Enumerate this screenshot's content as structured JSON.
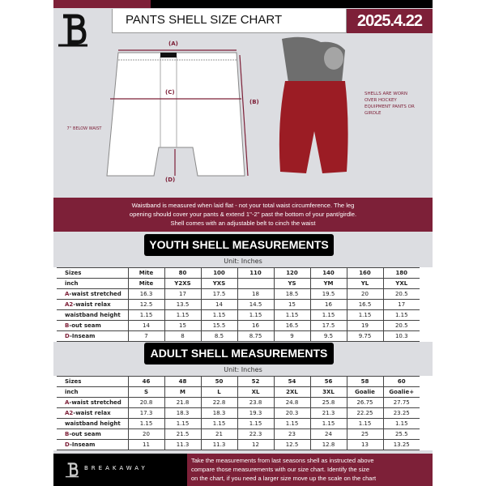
{
  "header": {
    "title": "PANTS SHELL SIZE CHART",
    "date": "2025.4.22"
  },
  "diagram": {
    "label_a": "(A)",
    "label_b": "(B)",
    "label_c": "(C)",
    "label_d": "(D)",
    "below_waist": "7'' BELOW WAIST",
    "note": "SHELLS ARE WORN OVER HOCKEY EQUIPMENT PANTS OR GIRDLE"
  },
  "banner": {
    "lines": [
      "Waistband is measured when laid flat - not your total waist circumference. The leg",
      "opening should cover your pants & extend 1''-2'' past the bottom of your pant/girdle.",
      "Shell comes with an adjustable belt to cinch the waist"
    ]
  },
  "youth": {
    "title": "YOUTH SHELL MEASUREMENTS",
    "unit": "Unit: Inches",
    "rows": [
      {
        "prefix": "",
        "label": "Sizes",
        "values": [
          "Mite",
          "80",
          "100",
          "110",
          "120",
          "140",
          "160",
          "180"
        ]
      },
      {
        "prefix": "",
        "label": "inch",
        "values": [
          "Mite",
          "Y2XS",
          "YXS",
          "",
          "YS",
          "YM",
          "YL",
          "YXL"
        ]
      },
      {
        "prefix": "A",
        "label": "-waist stretched",
        "values": [
          "16.3",
          "17",
          "17.5",
          "18",
          "18.5",
          "19.5",
          "20",
          "20.5"
        ]
      },
      {
        "prefix": "A2",
        "label": "-waist relax",
        "values": [
          "12.5",
          "13.5",
          "14",
          "14.5",
          "15",
          "16",
          "16.5",
          "17"
        ]
      },
      {
        "prefix": "",
        "label": "waistband height",
        "values": [
          "1.15",
          "1.15",
          "1.15",
          "1.15",
          "1.15",
          "1.15",
          "1.15",
          "1.15"
        ]
      },
      {
        "prefix": "B",
        "label": "-out seam",
        "values": [
          "14",
          "15",
          "15.5",
          "16",
          "16.5",
          "17.5",
          "19",
          "20.5"
        ]
      },
      {
        "prefix": "D",
        "label": "-Inseam",
        "values": [
          "7",
          "8",
          "8.5",
          "8.75",
          "9",
          "9.5",
          "9.75",
          "10.3"
        ]
      }
    ]
  },
  "adult": {
    "title": "ADULT SHELL MEASUREMENTS",
    "unit": "Unit: Inches",
    "rows": [
      {
        "prefix": "",
        "label": "Sizes",
        "values": [
          "46",
          "48",
          "50",
          "52",
          "54",
          "56",
          "58",
          "60"
        ]
      },
      {
        "prefix": "",
        "label": "inch",
        "values": [
          "S",
          "M",
          "L",
          "XL",
          "2XL",
          "3XL",
          "Goalie",
          "Goalie+"
        ]
      },
      {
        "prefix": "A",
        "label": "-waist stretched",
        "values": [
          "20.8",
          "21.8",
          "22.8",
          "23.8",
          "24.8",
          "25.8",
          "26.75",
          "27.75"
        ]
      },
      {
        "prefix": "A2",
        "label": "-waist relax",
        "values": [
          "17.3",
          "18.3",
          "18.3",
          "19.3",
          "20.3",
          "21.3",
          "22.25",
          "23.25"
        ]
      },
      {
        "prefix": "",
        "label": "waistband height",
        "values": [
          "1.15",
          "1.15",
          "1.15",
          "1.15",
          "1.15",
          "1.15",
          "1.15",
          "1.15"
        ]
      },
      {
        "prefix": "B",
        "label": "-out seam",
        "values": [
          "20",
          "21.5",
          "21",
          "22.3",
          "23",
          "24",
          "25",
          "25.5"
        ]
      },
      {
        "prefix": "D",
        "label": "-Inseam",
        "values": [
          "11",
          "11.3",
          "11.3",
          "12",
          "12.5",
          "12.8",
          "13",
          "13.25"
        ]
      }
    ]
  },
  "footer": {
    "brand": "BREAKAWAY",
    "lines": [
      "Take the measurements from last seasons shell as instructed above",
      "compare those measurements  with our size chart. Identify the size",
      "on the chart, if you need a larger size move up the scale on the chart"
    ]
  },
  "colors": {
    "maroon": "#7d2038",
    "black": "#000000",
    "background": "#dcdde1"
  }
}
